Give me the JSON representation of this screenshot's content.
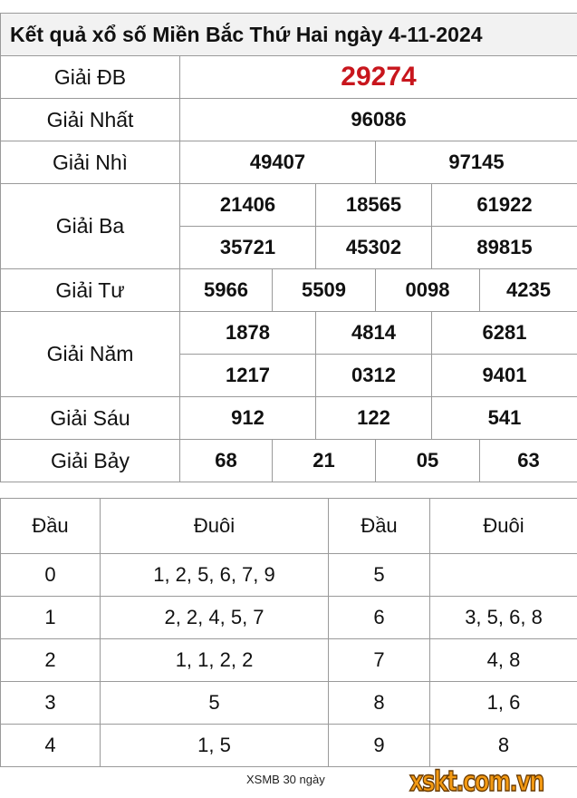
{
  "title": "Kết quả xổ số Miền Bắc Thứ Hai ngày 4-11-2024",
  "prizes": {
    "db": {
      "label": "Giải ĐB",
      "values": [
        "29274"
      ]
    },
    "nhat": {
      "label": "Giải Nhất",
      "values": [
        "96086"
      ]
    },
    "nhi": {
      "label": "Giải Nhì",
      "values": [
        "49407",
        "97145"
      ]
    },
    "ba": {
      "label": "Giải Ba",
      "values": [
        "21406",
        "18565",
        "61922",
        "35721",
        "45302",
        "89815"
      ]
    },
    "tu": {
      "label": "Giải Tư",
      "values": [
        "5966",
        "5509",
        "0098",
        "4235"
      ]
    },
    "nam": {
      "label": "Giải Năm",
      "values": [
        "1878",
        "4814",
        "6281",
        "1217",
        "0312",
        "9401"
      ]
    },
    "sau": {
      "label": "Giải Sáu",
      "values": [
        "912",
        "122",
        "541"
      ]
    },
    "bay": {
      "label": "Giải Bảy",
      "values": [
        "68",
        "21",
        "05",
        "63"
      ]
    }
  },
  "loto": {
    "headers": [
      "Đầu",
      "Đuôi",
      "Đầu",
      "Đuôi"
    ],
    "rows": [
      [
        "0",
        "1, 2, 5, 6, 7, 9",
        "5",
        ""
      ],
      [
        "1",
        "2, 2, 4, 5, 7",
        "6",
        "3, 5, 6, 8"
      ],
      [
        "2",
        "1, 1, 2, 2",
        "7",
        "4, 8"
      ],
      [
        "3",
        "5",
        "8",
        "1, 6"
      ],
      [
        "4",
        "1, 5",
        "9",
        "8"
      ]
    ]
  },
  "footer": {
    "link": "XSMB 30 ngày",
    "logo": "xskt.com.vn"
  },
  "colors": {
    "special": "#c8161d",
    "logo": "#f39a12"
  }
}
